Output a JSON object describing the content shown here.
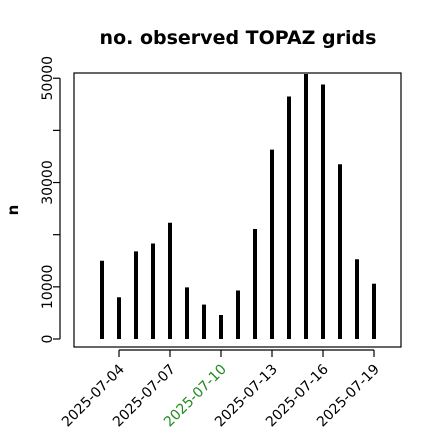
{
  "chart_data": {
    "type": "bar",
    "title": "no. observed TOPAZ grids",
    "xlabel": "",
    "ylabel": "n",
    "ylim": [
      0,
      51000
    ],
    "yticks": [
      0,
      10000,
      30000,
      50000
    ],
    "x_dates": [
      "2025-07-03",
      "2025-07-04",
      "2025-07-05",
      "2025-07-06",
      "2025-07-07",
      "2025-07-08",
      "2025-07-09",
      "2025-07-10",
      "2025-07-11",
      "2025-07-12",
      "2025-07-13",
      "2025-07-14",
      "2025-07-15",
      "2025-07-16",
      "2025-07-17",
      "2025-07-18",
      "2025-07-19"
    ],
    "values": [
      15000,
      8000,
      16800,
      18300,
      22300,
      9900,
      6600,
      4600,
      9300,
      21100,
      36300,
      46500,
      50800,
      48800,
      33500,
      15300,
      10600
    ],
    "xticks": [
      "2025-07-04",
      "2025-07-07",
      "2025-07-10",
      "2025-07-13",
      "2025-07-16",
      "2025-07-19"
    ],
    "highlighted_tick": "2025-07-10",
    "colors": {
      "bars": "#000000",
      "highlight": "#228B22",
      "text": "#000000"
    },
    "grid": false
  }
}
